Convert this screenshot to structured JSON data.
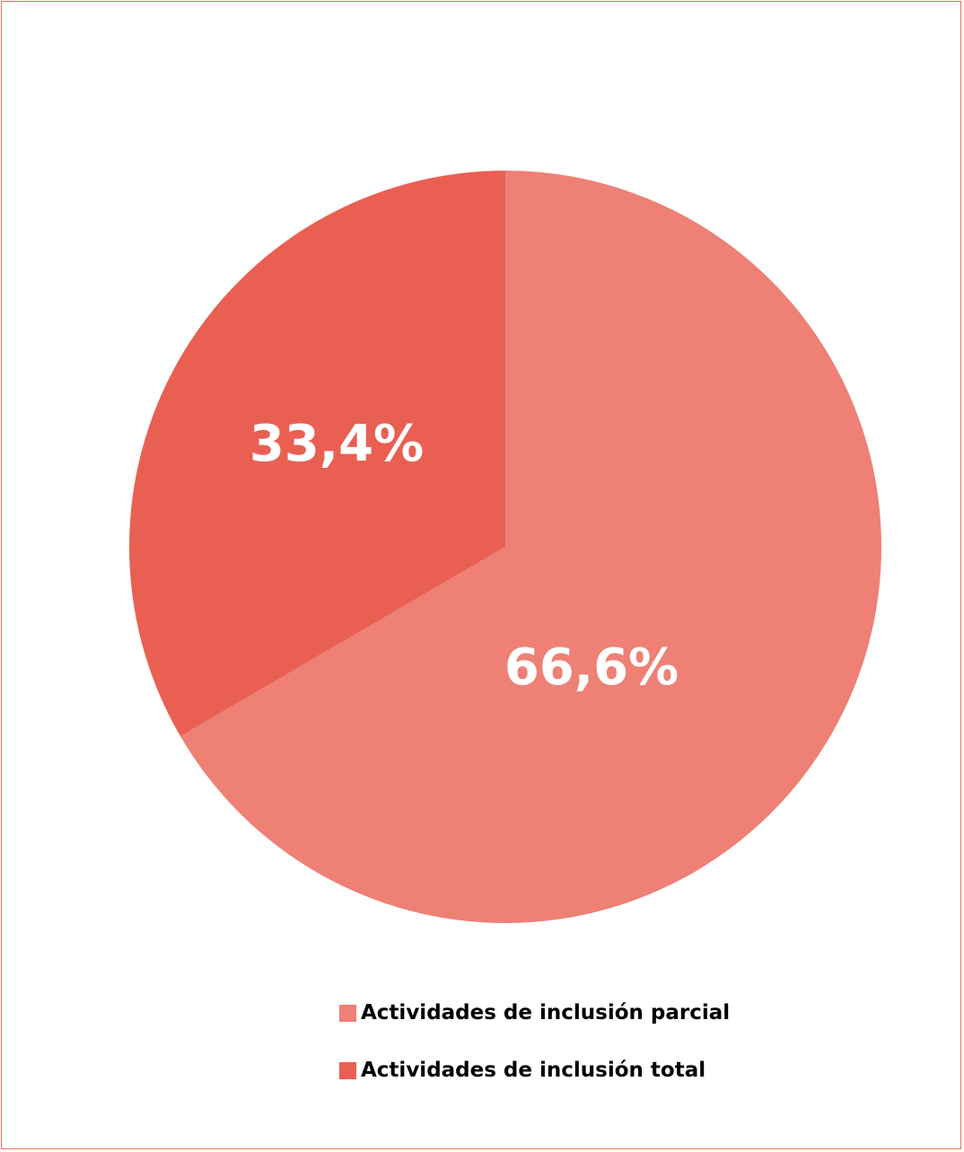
{
  "chart_data": {
    "type": "pie",
    "slices": [
      {
        "name": "Actividades de inclusión parcial",
        "value": 66.6,
        "label": "66,6%",
        "color": "#EE8075"
      },
      {
        "name": "Actividades de inclusión total",
        "value": 33.4,
        "label": "33,4%",
        "color": "#E96053"
      }
    ],
    "start": "12 o'clock",
    "direction": "clockwise",
    "legend": {
      "placement": "bottom",
      "items": [
        {
          "label": "Actividades de inclusión parcial",
          "color": "#EE8075"
        },
        {
          "label": "Actividades de inclusión total",
          "color": "#E96053"
        }
      ]
    },
    "border_color": "#E8715F"
  }
}
